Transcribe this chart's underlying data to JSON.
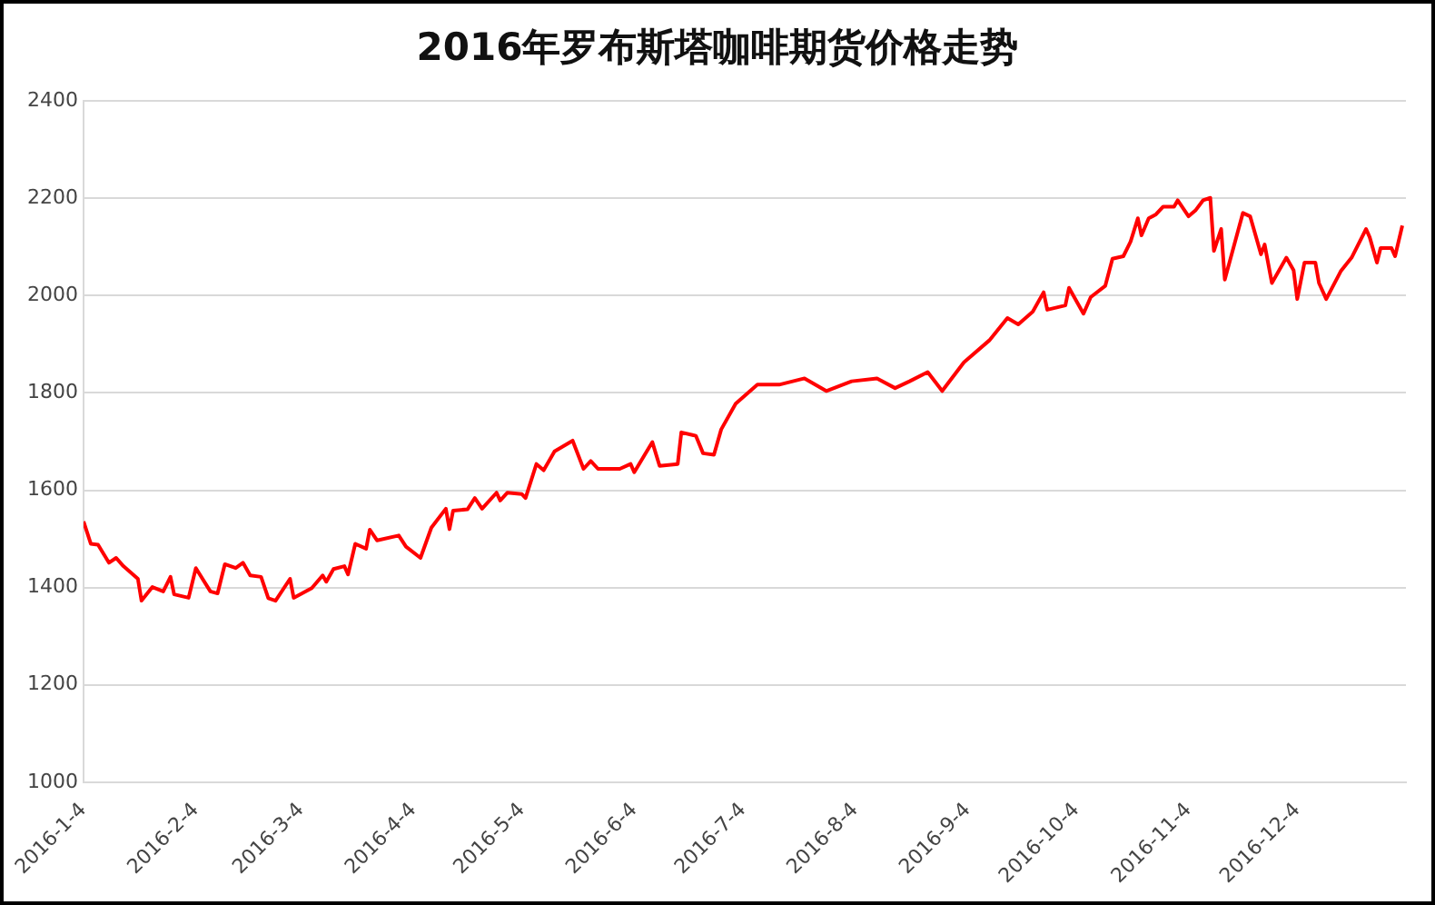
{
  "chart_data": {
    "type": "line",
    "title": "2016年罗布斯塔咖啡期货价格走势",
    "x": [
      "2016-01-04",
      "2016-01-06",
      "2016-01-08",
      "2016-01-11",
      "2016-01-13",
      "2016-01-15",
      "2016-01-19",
      "2016-01-20",
      "2016-01-23",
      "2016-01-26",
      "2016-01-28",
      "2016-01-29",
      "2016-02-02",
      "2016-02-04",
      "2016-02-08",
      "2016-02-10",
      "2016-02-12",
      "2016-02-15",
      "2016-02-17",
      "2016-02-19",
      "2016-02-22",
      "2016-02-24",
      "2016-02-26",
      "2016-03-01",
      "2016-03-02",
      "2016-03-07",
      "2016-03-10",
      "2016-03-11",
      "2016-03-13",
      "2016-03-16",
      "2016-03-17",
      "2016-03-19",
      "2016-03-22",
      "2016-03-23",
      "2016-03-25",
      "2016-03-31",
      "2016-04-02",
      "2016-04-06",
      "2016-04-09",
      "2016-04-13",
      "2016-04-14",
      "2016-04-15",
      "2016-04-19",
      "2016-04-21",
      "2016-04-23",
      "2016-04-27",
      "2016-04-28",
      "2016-04-30",
      "2016-05-04",
      "2016-05-05",
      "2016-05-08",
      "2016-05-10",
      "2016-05-13",
      "2016-05-18",
      "2016-05-21",
      "2016-05-23",
      "2016-05-25",
      "2016-05-31",
      "2016-06-03",
      "2016-06-04",
      "2016-06-09",
      "2016-06-11",
      "2016-06-16",
      "2016-06-17",
      "2016-06-21",
      "2016-06-23",
      "2016-06-26",
      "2016-06-28",
      "2016-07-02",
      "2016-07-08",
      "2016-07-14",
      "2016-07-21",
      "2016-07-27",
      "2016-08-03",
      "2016-08-10",
      "2016-08-15",
      "2016-08-19",
      "2016-08-24",
      "2016-08-28",
      "2016-09-03",
      "2016-09-10",
      "2016-09-15",
      "2016-09-18",
      "2016-09-22",
      "2016-09-25",
      "2016-09-26",
      "2016-10-01",
      "2016-10-02",
      "2016-10-06",
      "2016-10-08",
      "2016-10-12",
      "2016-10-14",
      "2016-10-17",
      "2016-10-19",
      "2016-10-21",
      "2016-10-22",
      "2016-10-24",
      "2016-10-26",
      "2016-10-28",
      "2016-10-31",
      "2016-11-01",
      "2016-11-04",
      "2016-11-06",
      "2016-11-08",
      "2016-11-10",
      "2016-11-11",
      "2016-11-13",
      "2016-11-14",
      "2016-11-19",
      "2016-11-21",
      "2016-11-24",
      "2016-11-25",
      "2016-11-27",
      "2016-12-01",
      "2016-12-03",
      "2016-12-04",
      "2016-12-06",
      "2016-12-09",
      "2016-12-10",
      "2016-12-12",
      "2016-12-16",
      "2016-12-19",
      "2016-12-23",
      "2016-12-24",
      "2016-12-26",
      "2016-12-27",
      "2016-12-30",
      "2016-12-31",
      "2017-01-02"
    ],
    "series": [
      {
        "color": "#ff0000",
        "values": [
          1536,
          1490,
          1488,
          1451,
          1461,
          1444,
          1418,
          1373,
          1401,
          1392,
          1422,
          1386,
          1379,
          1440,
          1392,
          1388,
          1448,
          1440,
          1451,
          1425,
          1422,
          1378,
          1373,
          1418,
          1379,
          1399,
          1425,
          1412,
          1438,
          1444,
          1427,
          1490,
          1480,
          1519,
          1497,
          1507,
          1484,
          1461,
          1523,
          1562,
          1520,
          1558,
          1561,
          1584,
          1562,
          1595,
          1579,
          1595,
          1592,
          1584,
          1654,
          1641,
          1680,
          1702,
          1644,
          1660,
          1644,
          1644,
          1654,
          1637,
          1699,
          1650,
          1654,
          1719,
          1712,
          1676,
          1673,
          1725,
          1778,
          1817,
          1817,
          1830,
          1804,
          1824,
          1830,
          1810,
          1824,
          1843,
          1804,
          1863,
          1908,
          1954,
          1941,
          1967,
          2007,
          1971,
          1980,
          2016,
          1963,
          1997,
          2020,
          2076,
          2081,
          2111,
          2159,
          2124,
          2159,
          2167,
          2183,
          2183,
          2196,
          2163,
          2176,
          2196,
          2201,
          2092,
          2137,
          2033,
          2170,
          2163,
          2085,
          2105,
          2026,
          2078,
          2052,
          1993,
          2068,
          2068,
          2026,
          1993,
          2050,
          2078,
          2137,
          2120,
          2068,
          2098,
          2098,
          2081,
          2144
        ]
      }
    ],
    "xlim": [
      "2016-01-04",
      "2017-01-03"
    ],
    "xticks": [
      {
        "value": "2016-01-04",
        "label": "2016-1-4"
      },
      {
        "value": "2016-02-04",
        "label": "2016-2-4"
      },
      {
        "value": "2016-03-04",
        "label": "2016-3-4"
      },
      {
        "value": "2016-04-04",
        "label": "2016-4-4"
      },
      {
        "value": "2016-05-04",
        "label": "2016-5-4"
      },
      {
        "value": "2016-06-04",
        "label": "2016-6-4"
      },
      {
        "value": "2016-07-04",
        "label": "2016-7-4"
      },
      {
        "value": "2016-08-04",
        "label": "2016-8-4"
      },
      {
        "value": "2016-09-04",
        "label": "2016-9-4"
      },
      {
        "value": "2016-10-04",
        "label": "2016-10-4"
      },
      {
        "value": "2016-11-04",
        "label": "2016-11-4"
      },
      {
        "value": "2016-12-04",
        "label": "2016-12-4"
      }
    ],
    "ylim": [
      1000,
      2400
    ],
    "yticks": [
      1000,
      1200,
      1400,
      1600,
      1800,
      2000,
      2200,
      2400
    ],
    "grid": "y",
    "legend": false,
    "marker": "none",
    "line_style": "solid"
  }
}
